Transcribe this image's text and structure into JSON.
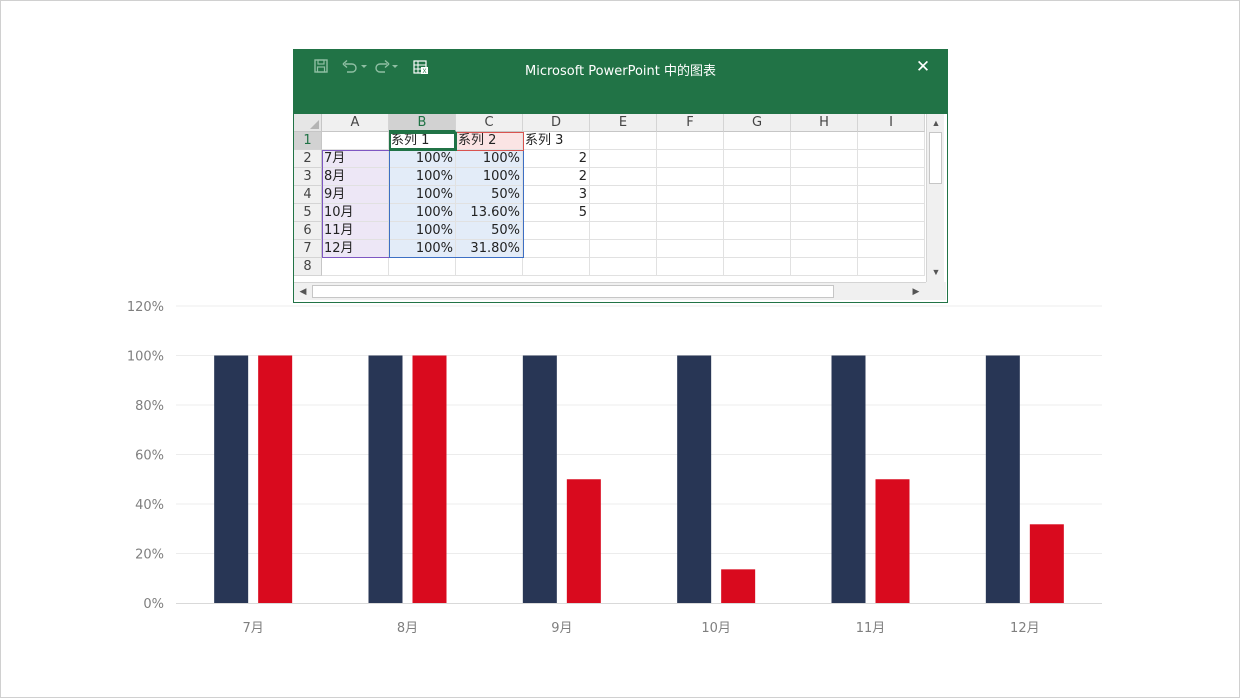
{
  "colors": {
    "series1": "#283655",
    "series2": "#d90a1e",
    "gridline": "#ececec",
    "axis": "#d9d9d9",
    "excel_green": "#217346"
  },
  "chart_data": {
    "type": "bar",
    "categories": [
      "7月",
      "8月",
      "9月",
      "10月",
      "11月",
      "12月"
    ],
    "series": [
      {
        "name": "系列 1",
        "values": [
          100,
          100,
          100,
          100,
          100,
          100
        ]
      },
      {
        "name": "系列 2",
        "values": [
          100,
          100,
          50,
          13.6,
          50,
          31.8
        ]
      }
    ],
    "ylim": [
      0,
      120
    ],
    "y_ticks": [
      0,
      20,
      40,
      60,
      80,
      100,
      120
    ],
    "y_tick_labels": [
      "0%",
      "20%",
      "40%",
      "60%",
      "80%",
      "100%",
      "120%"
    ],
    "grid": true,
    "legend": "none"
  },
  "excel": {
    "title": "Microsoft PowerPoint 中的图表",
    "quick_access": {
      "save_icon": "save-icon",
      "undo_icon": "undo-icon",
      "redo_icon": "redo-icon",
      "edit_data_icon": "edit-data-in-excel-icon"
    },
    "close_label": "✕",
    "columns": [
      "A",
      "B",
      "C",
      "D",
      "E",
      "F",
      "G",
      "H",
      "I"
    ],
    "rows": [
      "1",
      "2",
      "3",
      "4",
      "5",
      "6",
      "7",
      "8"
    ],
    "cells": [
      [
        "",
        "系列 1",
        "系列 2",
        "系列 3",
        "",
        "",
        "",
        "",
        ""
      ],
      [
        "7月",
        "100%",
        "100%",
        "2",
        "",
        "",
        "",
        "",
        ""
      ],
      [
        "8月",
        "100%",
        "100%",
        "2",
        "",
        "",
        "",
        "",
        ""
      ],
      [
        "9月",
        "100%",
        "50%",
        "3",
        "",
        "",
        "",
        "",
        ""
      ],
      [
        "10月",
        "100%",
        "13.60%",
        "5",
        "",
        "",
        "",
        "",
        ""
      ],
      [
        "11月",
        "100%",
        "50%",
        "",
        "",
        "",
        "",
        "",
        ""
      ],
      [
        "12月",
        "100%",
        "31.80%",
        "",
        "",
        "",
        "",
        "",
        ""
      ],
      [
        "",
        "",
        "",
        "",
        "",
        "",
        "",
        "",
        ""
      ]
    ],
    "selected_column": "B",
    "selected_row": "1"
  }
}
